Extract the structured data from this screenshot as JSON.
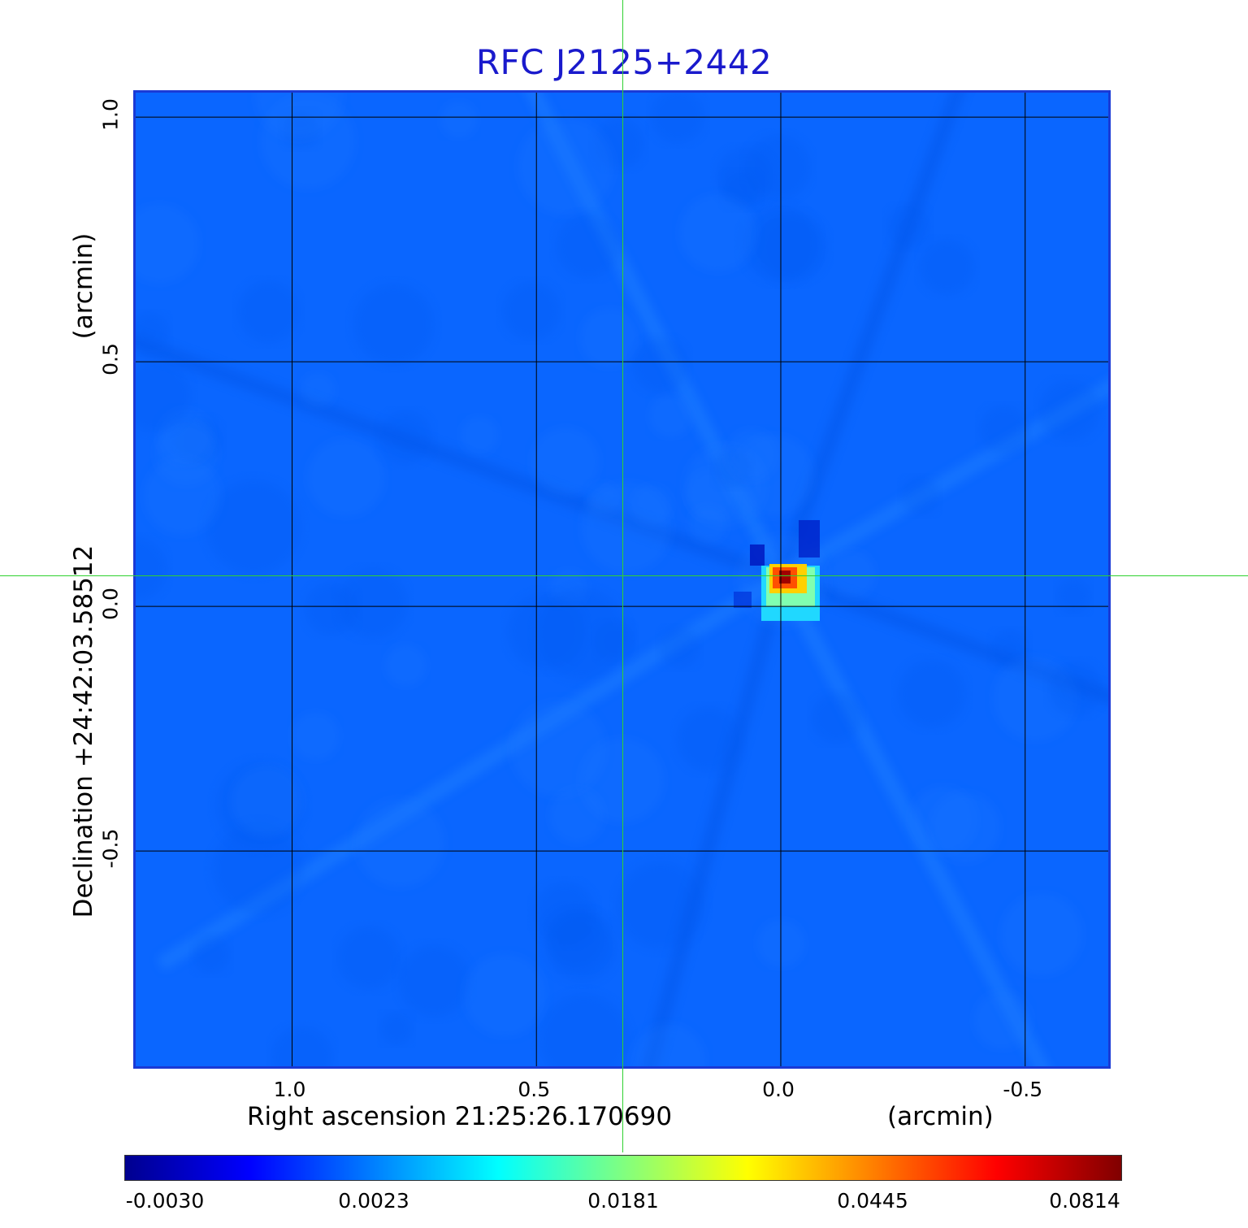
{
  "chart_data": {
    "type": "heatmap",
    "title": "RFC J2125+2442",
    "xlabel": "Right ascension  21:25:26.170690",
    "xlabel_unit": "(arcmin)",
    "ylabel": "Declination  +24:42:03.58512",
    "ylabel_unit": "(arcmin)",
    "x_ticks": [
      "1.0",
      "0.5",
      "0.0",
      "-0.5"
    ],
    "x_tick_values": [
      1.0,
      0.5,
      0.0,
      -0.5
    ],
    "y_ticks": [
      "1.0",
      "0.5",
      "0.0",
      "-0.5"
    ],
    "y_tick_values": [
      1.0,
      0.5,
      0.0,
      -0.5
    ],
    "xlim": [
      1.32,
      -0.68
    ],
    "ylim": [
      -0.95,
      1.05
    ],
    "grid": true,
    "peak": {
      "x": 0.0,
      "y": 0.06
    },
    "colorbar": {
      "ticks": [
        "-0.0030",
        "0.0023",
        "0.0181",
        "0.0445",
        "0.0814"
      ],
      "tick_values": [
        -0.003,
        0.0023,
        0.0181,
        0.0445,
        0.0814
      ],
      "colormap": "jet",
      "colors": [
        "#00008f",
        "#0000ff",
        "#0080ff",
        "#00ffff",
        "#80ff80",
        "#ffff00",
        "#ff8000",
        "#ff0000",
        "#800000"
      ]
    },
    "background_color": "#0a66ff",
    "crosshair_color": "#2fd12f"
  }
}
